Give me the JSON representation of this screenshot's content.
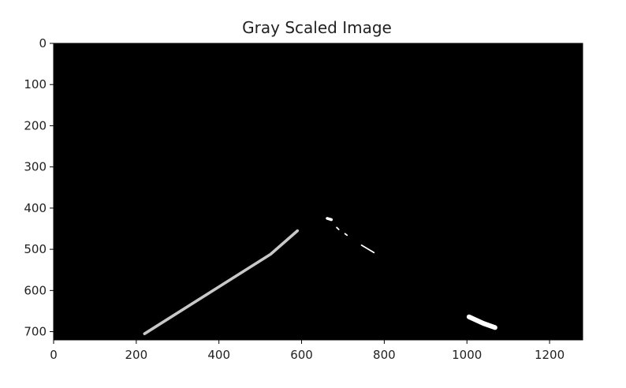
{
  "chart_data": {
    "type": "image",
    "title": "Gray Scaled Image",
    "xlabel": "",
    "ylabel": "",
    "xlim": [
      0,
      1280
    ],
    "ylim": [
      720,
      0
    ],
    "x_ticks": [
      0,
      200,
      400,
      600,
      800,
      1000,
      1200
    ],
    "y_ticks": [
      0,
      100,
      200,
      300,
      400,
      500,
      600,
      700
    ],
    "grid": false,
    "background_color": "#000000",
    "features": [
      {
        "shape": "line",
        "color": "#c8c8c8",
        "width": 6,
        "points": [
          [
            220,
            705
          ],
          [
            525,
            512
          ],
          [
            590,
            455
          ]
        ]
      },
      {
        "shape": "line",
        "color": "#ffffff",
        "width": 6,
        "points": [
          [
            662,
            425
          ],
          [
            672,
            428
          ]
        ]
      },
      {
        "shape": "line",
        "color": "#ffffff",
        "width": 3,
        "points": [
          [
            685,
            447
          ],
          [
            690,
            452
          ]
        ]
      },
      {
        "shape": "line",
        "color": "#ffffff",
        "width": 3,
        "points": [
          [
            705,
            462
          ],
          [
            710,
            466
          ]
        ]
      },
      {
        "shape": "line",
        "color": "#ffffff",
        "width": 3,
        "points": [
          [
            745,
            490
          ],
          [
            775,
            508
          ]
        ]
      },
      {
        "shape": "line",
        "color": "#ffffff",
        "width": 10,
        "points": [
          [
            1005,
            664
          ],
          [
            1040,
            680
          ],
          [
            1068,
            690
          ]
        ]
      }
    ]
  }
}
